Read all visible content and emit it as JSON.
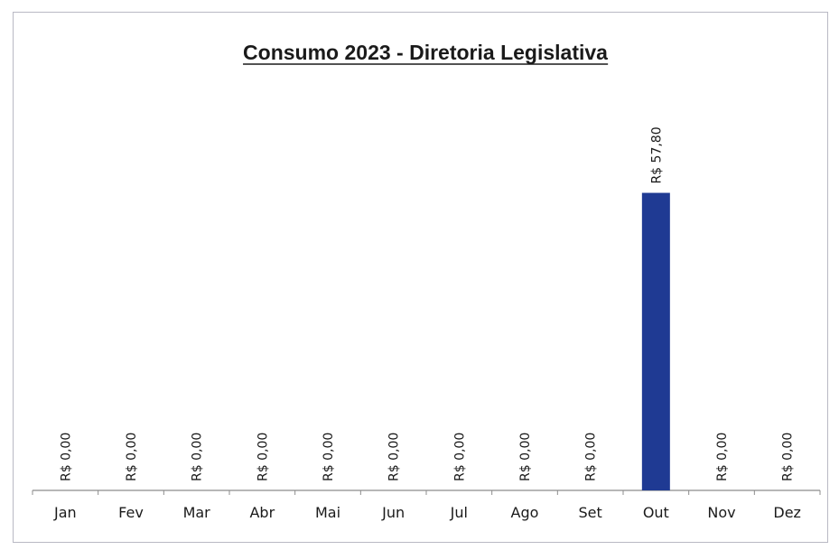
{
  "chart_data": {
    "type": "bar",
    "title": "Consumo 2023 - Diretoria Legislativa",
    "xlabel": "",
    "ylabel": "",
    "categories": [
      "Jan",
      "Fev",
      "Mar",
      "Abr",
      "Mai",
      "Jun",
      "Jul",
      "Ago",
      "Set",
      "Out",
      "Nov",
      "Dez"
    ],
    "values": [
      0,
      0,
      0,
      0,
      0,
      0,
      0,
      0,
      0,
      57.8,
      0,
      0
    ],
    "data_labels": [
      "R$ 0,00",
      "R$ 0,00",
      "R$ 0,00",
      "R$ 0,00",
      "R$ 0,00",
      "R$ 0,00",
      "R$ 0,00",
      "R$ 0,00",
      "R$ 0,00",
      "R$ 57,80",
      "R$ 0,00",
      "R$ 0,00"
    ],
    "ylim": [
      0,
      80
    ],
    "grid": false,
    "legend": "none",
    "colors": {
      "bar": "#1f3a93",
      "axis": "#8c8c8c",
      "text": "#1a1a1a",
      "frame": "#b9b9c4"
    }
  }
}
